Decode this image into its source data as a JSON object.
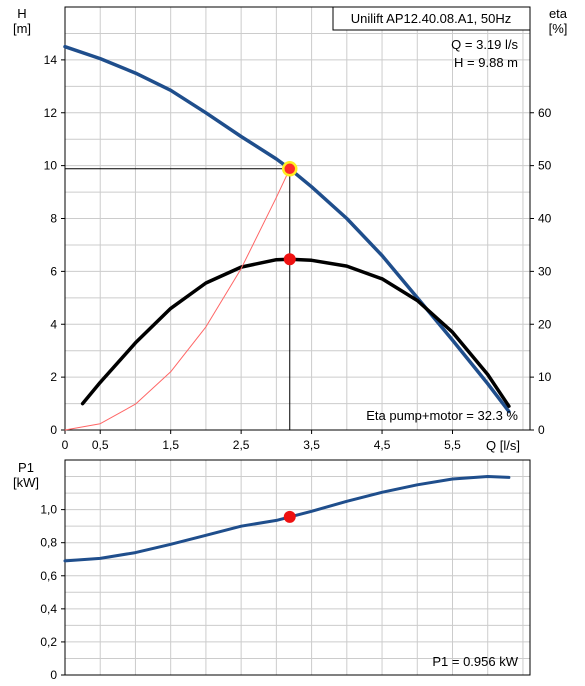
{
  "chart_data": [
    {
      "type": "line",
      "title": "Unilift AP12.40.08.A1, 50Hz",
      "xlabel": "Q [l/s]",
      "ylabel": "H",
      "ylabel_unit": "[m]",
      "y2label": "eta",
      "y2label_unit": "[%]",
      "xlim": [
        0,
        6.6
      ],
      "ylim": [
        0,
        16
      ],
      "y2lim": [
        0,
        80
      ],
      "grid": true,
      "x_ticks": [
        "0",
        "0,5",
        "1,5",
        "2,5",
        "3,5",
        "4,5",
        "5,5"
      ],
      "y_ticks": [
        "0",
        "2",
        "4",
        "6",
        "8",
        "10",
        "12",
        "14"
      ],
      "y2_ticks": [
        "0",
        "10",
        "20",
        "30",
        "40",
        "50",
        "60"
      ],
      "op_q_label": "Q = 3.19 l/s",
      "op_h_label": "H = 9.88 m",
      "eta_label": "Eta pump+motor = 32.3 %",
      "operating_point": {
        "q": 3.19,
        "h": 9.88,
        "eta": 32.3
      },
      "series": [
        {
          "color": "#1f4e8c",
          "x": [
            0,
            0.5,
            1,
            1.5,
            2,
            2.5,
            3,
            3.19,
            3.5,
            4,
            4.5,
            5,
            5.5,
            6,
            6.3
          ],
          "y": [
            14.5,
            14.05,
            13.5,
            12.85,
            12.0,
            11.1,
            10.25,
            9.88,
            9.2,
            8.0,
            6.6,
            5.0,
            3.4,
            1.75,
            0.7
          ]
        },
        {
          "color": "#000000",
          "axis": "y2",
          "x": [
            0.25,
            0.5,
            1,
            1.5,
            2,
            2.5,
            3,
            3.19,
            3.5,
            4,
            4.5,
            5,
            5.5,
            6,
            6.3
          ],
          "y": [
            5,
            9,
            16.5,
            23,
            27.8,
            30.8,
            32.2,
            32.3,
            32.1,
            31,
            28.6,
            24.5,
            18.5,
            10.5,
            4.5
          ]
        },
        {
          "color": "#ff6666",
          "x": [
            0,
            0.5,
            1,
            1.5,
            2,
            2.5,
            3,
            3.19
          ],
          "y": [
            0,
            0.24,
            0.98,
            2.2,
            3.9,
            6.1,
            8.8,
            9.88
          ]
        }
      ]
    },
    {
      "type": "line",
      "xlabel": "",
      "ylabel": "P1",
      "ylabel_unit": "[kW]",
      "xlim": [
        0,
        6.6
      ],
      "ylim": [
        0,
        1.3
      ],
      "grid": true,
      "y_ticks": [
        "0",
        "0,2",
        "0,4",
        "0,6",
        "0,8",
        "1,0"
      ],
      "p1_label": "P1 = 0.956 kW",
      "operating_point": {
        "q": 3.19,
        "p1": 0.956
      },
      "series": [
        {
          "color": "#1f4e8c",
          "x": [
            0,
            0.5,
            1,
            1.5,
            2,
            2.5,
            3,
            3.19,
            3.5,
            4,
            4.5,
            5,
            5.5,
            6,
            6.3
          ],
          "y": [
            0.69,
            0.705,
            0.74,
            0.79,
            0.845,
            0.9,
            0.935,
            0.956,
            0.99,
            1.05,
            1.105,
            1.15,
            1.185,
            1.2,
            1.195
          ]
        }
      ]
    }
  ]
}
